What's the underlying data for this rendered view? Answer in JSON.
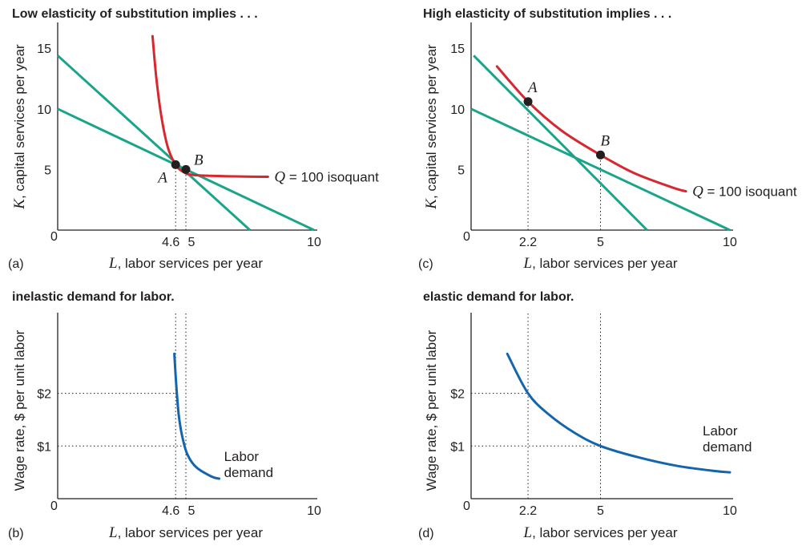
{
  "colors": {
    "isoquant": "#d7282f",
    "isocost": "#1aa48a",
    "demand": "#1565ad",
    "axis": "#231f20",
    "guide": "#231f20"
  },
  "chart_data": [
    {
      "id": "a",
      "type": "line",
      "title": "Low elasticity of substitution implies . . .",
      "panel_label": "(a)",
      "xlabel_var": "L",
      "xlabel_rest": ", labor services per year",
      "ylabel_var": "K",
      "ylabel_rest": ", capital services per year",
      "xlim": [
        0,
        10
      ],
      "ylim": [
        0,
        17
      ],
      "x_ticks": [
        {
          "value": 4.6,
          "label": "4.6"
        },
        {
          "value": 5,
          "label": "5"
        },
        {
          "value": 10,
          "label": "10"
        }
      ],
      "y_ticks": [
        {
          "value": 5,
          "label": "5"
        },
        {
          "value": 10,
          "label": "10"
        },
        {
          "value": 15,
          "label": "15"
        }
      ],
      "origin_label": "0",
      "series": [
        {
          "role": "isocost",
          "points": [
            [
              0,
              14.4
            ],
            [
              7.5,
              0
            ]
          ]
        },
        {
          "role": "isocost",
          "points": [
            [
              0,
              10
            ],
            [
              10,
              0
            ]
          ]
        },
        {
          "role": "isoquant",
          "name": "Q = 100 isoquant",
          "name_var": "Q",
          "name_rest": " = 100 isoquant",
          "points": [
            [
              3.7,
              16
            ],
            [
              3.85,
              12.5
            ],
            [
              4.05,
              9.3
            ],
            [
              4.3,
              6.8
            ],
            [
              4.6,
              5.4
            ],
            [
              4.9,
              4.8
            ],
            [
              5.3,
              4.55
            ],
            [
              6.5,
              4.45
            ],
            [
              8.2,
              4.4
            ]
          ]
        }
      ],
      "markers": [
        {
          "label": "A",
          "x": 4.6,
          "y": 5.4
        },
        {
          "label": "B",
          "x": 5,
          "y": 5.0
        }
      ],
      "guides_x": [
        4.6,
        5
      ]
    },
    {
      "id": "c",
      "type": "line",
      "title": "High elasticity of substitution implies . . .",
      "panel_label": "(c)",
      "xlabel_var": "L",
      "xlabel_rest": ", labor services per year",
      "ylabel_var": "K",
      "ylabel_rest": ", capital services per year",
      "xlim": [
        0,
        10
      ],
      "ylim": [
        0,
        17
      ],
      "x_ticks": [
        {
          "value": 2.2,
          "label": "2.2"
        },
        {
          "value": 5,
          "label": "5"
        },
        {
          "value": 10,
          "label": "10"
        }
      ],
      "y_ticks": [
        {
          "value": 5,
          "label": "5"
        },
        {
          "value": 10,
          "label": "10"
        },
        {
          "value": 15,
          "label": "15"
        }
      ],
      "origin_label": "0",
      "series": [
        {
          "role": "isocost",
          "points": [
            [
              0.1,
              14.4
            ],
            [
              6.8,
              0
            ]
          ]
        },
        {
          "role": "isocost",
          "points": [
            [
              0,
              10
            ],
            [
              10,
              0
            ]
          ]
        },
        {
          "role": "isoquant",
          "name": "Q = 100 isoquant",
          "name_var": "Q",
          "name_rest": " = 100 isoquant",
          "points": [
            [
              1,
              13.5
            ],
            [
              2.2,
              10.6
            ],
            [
              3.5,
              8.2
            ],
            [
              5,
              6.2
            ],
            [
              6.3,
              4.7
            ],
            [
              7.8,
              3.5
            ],
            [
              8.3,
              3.2
            ]
          ]
        }
      ],
      "markers": [
        {
          "label": "A",
          "x": 2.2,
          "y": 10.6
        },
        {
          "label": "B",
          "x": 5,
          "y": 6.2
        }
      ],
      "guides_x": [
        2.2,
        5
      ]
    },
    {
      "id": "b",
      "type": "line",
      "title": "inelastic demand for labor.",
      "panel_label": "(b)",
      "xlabel_var": "L",
      "xlabel_rest": ", labor services per year",
      "ylabel": "Wage rate, $ per unit labor",
      "xlim": [
        0,
        10
      ],
      "ylim": [
        0,
        3.5
      ],
      "x_ticks": [
        {
          "value": 4.6,
          "label": "4.6"
        },
        {
          "value": 5,
          "label": "5"
        },
        {
          "value": 10,
          "label": "10"
        }
      ],
      "y_ticks": [
        {
          "value": 1,
          "label": "$1"
        },
        {
          "value": 2,
          "label": "$2"
        }
      ],
      "origin_label": "0",
      "series": [
        {
          "role": "demand",
          "name": "Labor demand",
          "name_lines": [
            "Labor",
            "demand"
          ],
          "points": [
            [
              4.55,
              2.75
            ],
            [
              4.62,
              2.2
            ],
            [
              4.72,
              1.6
            ],
            [
              4.85,
              1.2
            ],
            [
              5.05,
              0.85
            ],
            [
              5.4,
              0.6
            ],
            [
              6,
              0.42
            ],
            [
              6.3,
              0.38
            ]
          ]
        }
      ],
      "guides_x": [
        4.6,
        5
      ],
      "guides_y": [
        {
          "y": 2,
          "x": 4.6
        },
        {
          "y": 1,
          "x": 5
        }
      ]
    },
    {
      "id": "d",
      "type": "line",
      "title": "elastic demand for labor.",
      "panel_label": "(d)",
      "xlabel_var": "L",
      "xlabel_rest": ", labor services per year",
      "ylabel": "Wage rate, $ per unit labor",
      "xlim": [
        0,
        10
      ],
      "ylim": [
        0,
        3.5
      ],
      "x_ticks": [
        {
          "value": 2.2,
          "label": "2.2"
        },
        {
          "value": 5,
          "label": "5"
        },
        {
          "value": 10,
          "label": "10"
        }
      ],
      "y_ticks": [
        {
          "value": 1,
          "label": "$1"
        },
        {
          "value": 2,
          "label": "$2"
        }
      ],
      "origin_label": "0",
      "series": [
        {
          "role": "demand",
          "name": "Labor demand",
          "name_lines": [
            "Labor",
            "demand"
          ],
          "points": [
            [
              1.4,
              2.75
            ],
            [
              2.2,
              2.0
            ],
            [
              3,
              1.6
            ],
            [
              4,
              1.25
            ],
            [
              5,
              1.0
            ],
            [
              6.5,
              0.78
            ],
            [
              8,
              0.62
            ],
            [
              9.5,
              0.52
            ],
            [
              10,
              0.5
            ]
          ]
        }
      ],
      "guides_x": [
        2.2,
        5
      ],
      "guides_y": [
        {
          "y": 2,
          "x": 2.2
        },
        {
          "y": 1,
          "x": 5
        }
      ]
    }
  ]
}
